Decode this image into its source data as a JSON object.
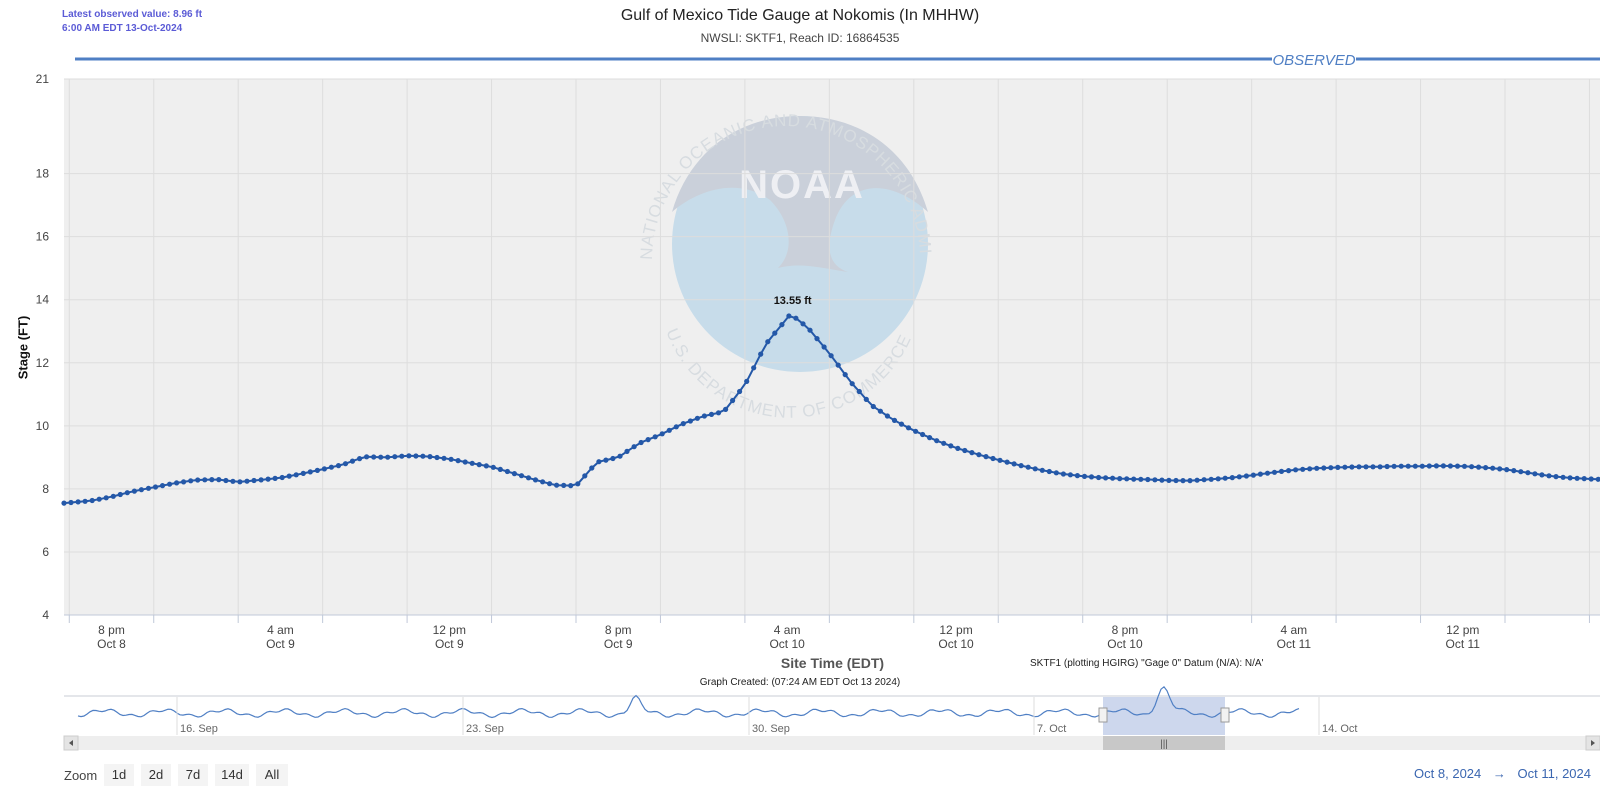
{
  "header": {
    "latest_line1": "Latest observed value: 8.96 ft",
    "latest_line2": "6:00 AM EDT 13-Oct-2024",
    "title": "Gulf of Mexico Tide Gauge at Nokomis (In MHHW)",
    "subtitle": "NWSLI: SKTF1, Reach ID: 16864535"
  },
  "footer": {
    "xaxis_title": "Site Time (EDT)",
    "datum_note": "SKTF1 (plotting HGIRG) \"Gage 0\" Datum (N/A): N/A'",
    "created": "Graph Created: (07:24 AM EDT Oct 13 2024)"
  },
  "watermark": {
    "top_arc": "NATIONAL OCEANIC AND ATMOSPHERIC ADMINISTRATION",
    "bottom_arc": "U.S. DEPARTMENT OF COMMERCE",
    "logo": "NOAA"
  },
  "navigator": {
    "labels": [
      "16. Sep",
      "23. Sep",
      "30. Sep",
      "7. Oct",
      "14. Oct"
    ]
  },
  "range_selector": {
    "zoom_label": "Zoom",
    "buttons": [
      "1d",
      "2d",
      "7d",
      "14d",
      "All"
    ],
    "from": "Oct 8, 2024",
    "arrow": "→",
    "to": "Oct 11, 2024"
  },
  "colors": {
    "series": "#2458a8",
    "plot_bg": "#efefef",
    "observed_band": "#4f7fc4",
    "latest_text": "#5b5bd6"
  },
  "chart_data": {
    "type": "line",
    "title": "Gulf of Mexico Tide Gauge at Nokomis (In MHHW)",
    "ylabel": "Stage (FT)",
    "xlabel": "Site Time (EDT)",
    "ylim": [
      4,
      21
    ],
    "yticks": [
      4,
      6,
      8,
      10,
      12,
      14,
      16,
      18,
      21
    ],
    "xlim": [
      "2024-10-08 17:45",
      "2024-10-11 18:30"
    ],
    "xticks": [
      {
        "t": "2024-10-08 20:00",
        "line1": "8 pm",
        "line2": "Oct 8"
      },
      {
        "t": "2024-10-09 04:00",
        "line1": "4 am",
        "line2": "Oct 9"
      },
      {
        "t": "2024-10-09 12:00",
        "line1": "12 pm",
        "line2": "Oct 9"
      },
      {
        "t": "2024-10-09 20:00",
        "line1": "8 pm",
        "line2": "Oct 9"
      },
      {
        "t": "2024-10-10 04:00",
        "line1": "4 am",
        "line2": "Oct 10"
      },
      {
        "t": "2024-10-10 12:00",
        "line1": "12 pm",
        "line2": "Oct 10"
      },
      {
        "t": "2024-10-10 20:00",
        "line1": "8 pm",
        "line2": "Oct 10"
      },
      {
        "t": "2024-10-11 04:00",
        "line1": "4 am",
        "line2": "Oct 11"
      },
      {
        "t": "2024-10-11 12:00",
        "line1": "12 pm",
        "line2": "Oct 11"
      }
    ],
    "grid": true,
    "band_label": "OBSERVED",
    "series": [
      {
        "name": "Observed",
        "points": [
          [
            "2024-10-08 17:45",
            7.55
          ],
          [
            "2024-10-08 19:00",
            7.62
          ],
          [
            "2024-10-08 20:00",
            7.75
          ],
          [
            "2024-10-08 21:00",
            7.92
          ],
          [
            "2024-10-08 22:00",
            8.05
          ],
          [
            "2024-10-08 23:00",
            8.18
          ],
          [
            "2024-10-09 00:00",
            8.28
          ],
          [
            "2024-10-09 01:00",
            8.3
          ],
          [
            "2024-10-09 02:00",
            8.22
          ],
          [
            "2024-10-09 03:00",
            8.28
          ],
          [
            "2024-10-09 04:00",
            8.35
          ],
          [
            "2024-10-09 05:00",
            8.48
          ],
          [
            "2024-10-09 06:00",
            8.62
          ],
          [
            "2024-10-09 07:00",
            8.78
          ],
          [
            "2024-10-09 08:00",
            9.02
          ],
          [
            "2024-10-09 09:00",
            9.0
          ],
          [
            "2024-10-09 10:00",
            9.05
          ],
          [
            "2024-10-09 11:00",
            9.03
          ],
          [
            "2024-10-09 12:00",
            8.95
          ],
          [
            "2024-10-09 13:00",
            8.82
          ],
          [
            "2024-10-09 14:00",
            8.7
          ],
          [
            "2024-10-09 15:00",
            8.5
          ],
          [
            "2024-10-09 16:00",
            8.3
          ],
          [
            "2024-10-09 17:00",
            8.12
          ],
          [
            "2024-10-09 18:00",
            8.1
          ],
          [
            "2024-10-09 19:00",
            8.85
          ],
          [
            "2024-10-09 20:00",
            9.0
          ],
          [
            "2024-10-09 21:00",
            9.45
          ],
          [
            "2024-10-09 22:00",
            9.72
          ],
          [
            "2024-10-09 23:00",
            10.05
          ],
          [
            "2024-10-10 00:00",
            10.3
          ],
          [
            "2024-10-10 01:00",
            10.45
          ],
          [
            "2024-10-10 02:00",
            11.3
          ],
          [
            "2024-10-10 03:00",
            12.6
          ],
          [
            "2024-10-10 04:10",
            13.55
          ],
          [
            "2024-10-10 05:00",
            13.1
          ],
          [
            "2024-10-10 06:00",
            12.3
          ],
          [
            "2024-10-10 07:00",
            11.4
          ],
          [
            "2024-10-10 08:00",
            10.65
          ],
          [
            "2024-10-10 09:00",
            10.2
          ],
          [
            "2024-10-10 10:00",
            9.85
          ],
          [
            "2024-10-10 11:00",
            9.55
          ],
          [
            "2024-10-10 12:00",
            9.3
          ],
          [
            "2024-10-10 13:00",
            9.1
          ],
          [
            "2024-10-10 14:00",
            8.92
          ],
          [
            "2024-10-10 15:00",
            8.75
          ],
          [
            "2024-10-10 16:00",
            8.6
          ],
          [
            "2024-10-10 17:00",
            8.48
          ],
          [
            "2024-10-10 18:00",
            8.4
          ],
          [
            "2024-10-10 19:00",
            8.35
          ],
          [
            "2024-10-10 20:00",
            8.32
          ],
          [
            "2024-10-10 21:00",
            8.3
          ],
          [
            "2024-10-10 22:00",
            8.27
          ],
          [
            "2024-10-10 23:00",
            8.26
          ],
          [
            "2024-10-11 00:00",
            8.3
          ],
          [
            "2024-10-11 01:00",
            8.35
          ],
          [
            "2024-10-11 02:00",
            8.43
          ],
          [
            "2024-10-11 03:00",
            8.52
          ],
          [
            "2024-10-11 04:00",
            8.6
          ],
          [
            "2024-10-11 05:00",
            8.65
          ],
          [
            "2024-10-11 06:00",
            8.68
          ],
          [
            "2024-10-11 07:00",
            8.7
          ],
          [
            "2024-10-11 08:00",
            8.7
          ],
          [
            "2024-10-11 09:00",
            8.72
          ],
          [
            "2024-10-11 10:00",
            8.72
          ],
          [
            "2024-10-11 11:00",
            8.73
          ],
          [
            "2024-10-11 12:00",
            8.72
          ],
          [
            "2024-10-11 13:00",
            8.68
          ],
          [
            "2024-10-11 14:00",
            8.62
          ],
          [
            "2024-10-11 15:00",
            8.52
          ],
          [
            "2024-10-11 16:00",
            8.42
          ],
          [
            "2024-10-11 17:00",
            8.35
          ],
          [
            "2024-10-11 18:30",
            8.3
          ]
        ]
      }
    ],
    "annotations": [
      {
        "t": "2024-10-10 04:10",
        "y": 13.55,
        "text": "13.55 ft"
      }
    ]
  }
}
